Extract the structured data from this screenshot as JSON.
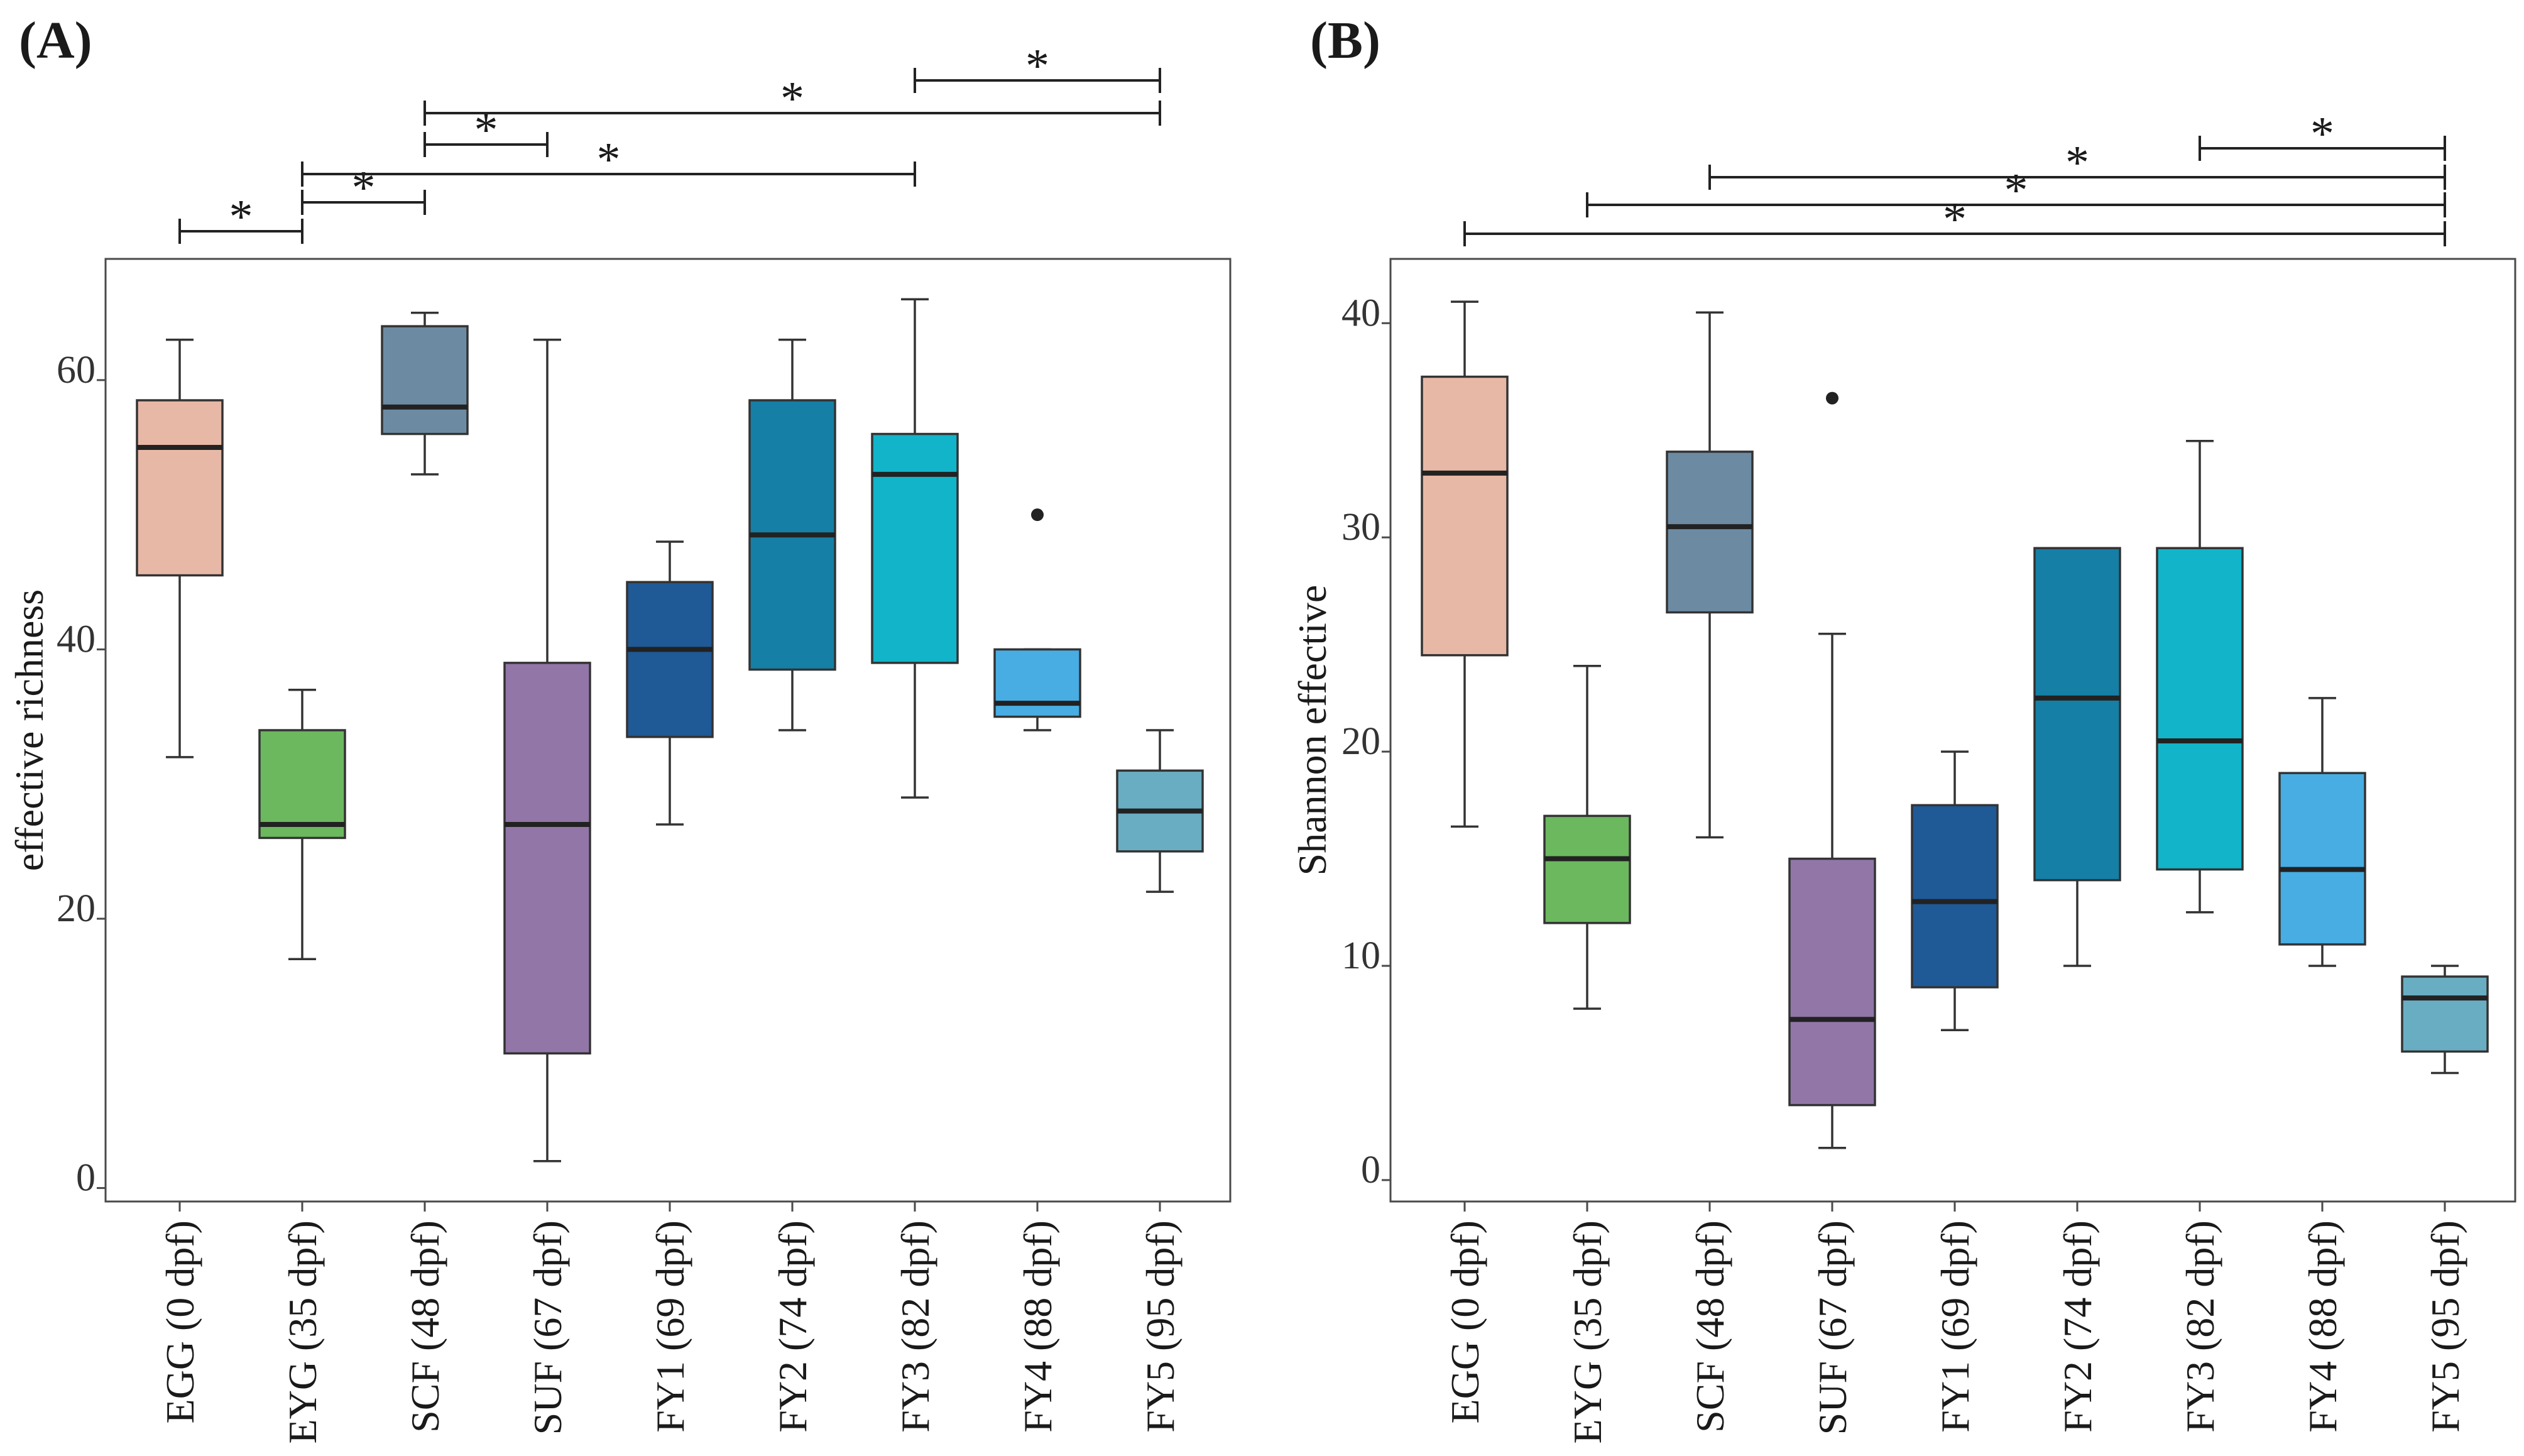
{
  "chart_data": [
    {
      "type": "box",
      "panel_label": "(A)",
      "ylabel": "effective richness",
      "xlabel": "",
      "ylim": [
        -1,
        69
      ],
      "yticks": [
        "0",
        "20",
        "40",
        "60"
      ],
      "categories": [
        "EGG (0 dpf)",
        "EYG (35 dpf)",
        "SCF (48 dpf)",
        "SUF (67 dpf)",
        "FY1 (69 dpf)",
        "FY2 (74 dpf)",
        "FY3 (82 dpf)",
        "FY4 (88 dpf)",
        "FY5 (95 dpf)"
      ],
      "colors": [
        "#e8b8a6",
        "#6bb85e",
        "#6c8ba3",
        "#9276a8",
        "#1f5996",
        "#157fa6",
        "#11b4c9",
        "#48ade3",
        "#69adc2"
      ],
      "boxes": [
        {
          "min": 32,
          "q1": 45.5,
          "median": 55,
          "q3": 58.5,
          "max": 63,
          "outliers": []
        },
        {
          "min": 17,
          "q1": 26,
          "median": 27,
          "q3": 34,
          "max": 37,
          "outliers": []
        },
        {
          "min": 53,
          "q1": 56,
          "median": 58,
          "q3": 64,
          "max": 65,
          "outliers": []
        },
        {
          "min": 2,
          "q1": 10,
          "median": 27,
          "q3": 39,
          "max": 63,
          "outliers": []
        },
        {
          "min": 27,
          "q1": 33.5,
          "median": 40,
          "q3": 45,
          "max": 48,
          "outliers": []
        },
        {
          "min": 34,
          "q1": 38.5,
          "median": 48.5,
          "q3": 58.5,
          "max": 63,
          "outliers": []
        },
        {
          "min": 29,
          "q1": 39,
          "median": 53,
          "q3": 56,
          "max": 66,
          "outliers": []
        },
        {
          "min": 34,
          "q1": 35,
          "median": 36,
          "q3": 40,
          "max": 40,
          "outliers": [
            50
          ]
        },
        {
          "min": 22,
          "q1": 25,
          "median": 28,
          "q3": 31,
          "max": 34,
          "outliers": []
        }
      ],
      "significance": [
        {
          "from": 0,
          "to": 1,
          "label": "*"
        },
        {
          "from": 1,
          "to": 2,
          "label": "*"
        },
        {
          "from": 1,
          "to": 6,
          "label": "*"
        },
        {
          "from": 2,
          "to": 3,
          "label": "*"
        },
        {
          "from": 2,
          "to": 8,
          "label": "*"
        },
        {
          "from": 6,
          "to": 8,
          "label": "*"
        }
      ]
    },
    {
      "type": "box",
      "panel_label": "(B)",
      "ylabel": "Shannon effective",
      "xlabel": "",
      "ylim": [
        -1,
        43
      ],
      "yticks": [
        "0",
        "10",
        "20",
        "30",
        "40"
      ],
      "categories": [
        "EGG (0 dpf)",
        "EYG (35 dpf)",
        "SCF (48 dpf)",
        "SUF (67 dpf)",
        "FY1 (69 dpf)",
        "FY2 (74 dpf)",
        "FY3 (82 dpf)",
        "FY4 (88 dpf)",
        "FY5 (95 dpf)"
      ],
      "colors": [
        "#e8b8a6",
        "#6bb85e",
        "#6c8ba3",
        "#9276a8",
        "#1f5996",
        "#157fa6",
        "#11b4c9",
        "#48ade3",
        "#69adc2"
      ],
      "boxes": [
        {
          "min": 16.5,
          "q1": 24.5,
          "median": 33,
          "q3": 37.5,
          "max": 41,
          "outliers": []
        },
        {
          "min": 8,
          "q1": 12,
          "median": 15,
          "q3": 17,
          "max": 24,
          "outliers": []
        },
        {
          "min": 16,
          "q1": 26.5,
          "median": 30.5,
          "q3": 34,
          "max": 40.5,
          "outliers": []
        },
        {
          "min": 1.5,
          "q1": 3.5,
          "median": 7.5,
          "q3": 15,
          "max": 25.5,
          "outliers": [
            36.5
          ]
        },
        {
          "min": 7,
          "q1": 9,
          "median": 13,
          "q3": 17.5,
          "max": 20,
          "outliers": []
        },
        {
          "min": 10,
          "q1": 14,
          "median": 22.5,
          "q3": 29.5,
          "max": 29.5,
          "outliers": []
        },
        {
          "min": 12.5,
          "q1": 14.5,
          "median": 20.5,
          "q3": 29.5,
          "max": 34.5,
          "outliers": []
        },
        {
          "min": 10,
          "q1": 11,
          "median": 14.5,
          "q3": 19,
          "max": 22.5,
          "outliers": []
        },
        {
          "min": 5,
          "q1": 6,
          "median": 8.5,
          "q3": 9.5,
          "max": 10,
          "outliers": []
        }
      ],
      "significance": [
        {
          "from": 6,
          "to": 8,
          "label": "*"
        },
        {
          "from": 2,
          "to": 8,
          "label": "*"
        },
        {
          "from": 1,
          "to": 8,
          "label": "*"
        },
        {
          "from": 0,
          "to": 8,
          "label": "*"
        }
      ]
    }
  ]
}
